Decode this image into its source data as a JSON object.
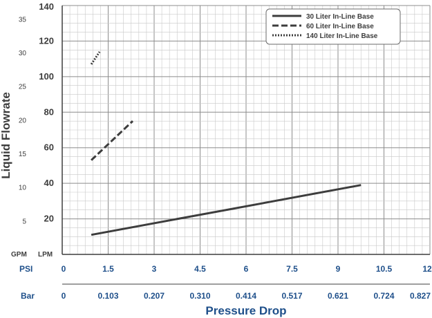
{
  "chart_data": {
    "type": "line",
    "ylabel": "Liquid Flowrate",
    "xlabel": "Pressure Drop",
    "x_unit_psi": "PSI",
    "x_unit_bar": "Bar",
    "y_unit_lpm": "LPM",
    "y_unit_gpm": "GPM",
    "xlim": [
      0,
      12
    ],
    "ylim": [
      0,
      140
    ],
    "psi_ticks": [
      {
        "value": 0,
        "label": "0"
      },
      {
        "value": 1.5,
        "label": "1.5"
      },
      {
        "value": 3,
        "label": "3"
      },
      {
        "value": 4.5,
        "label": "4.5"
      },
      {
        "value": 6,
        "label": "6"
      },
      {
        "value": 7.5,
        "label": "7.5"
      },
      {
        "value": 9,
        "label": "9"
      },
      {
        "value": 10.5,
        "label": "10.5"
      },
      {
        "value": 12,
        "label": "12"
      }
    ],
    "bar_ticks": [
      {
        "value": 0,
        "label": "0"
      },
      {
        "value": 1.5,
        "label": "0.103"
      },
      {
        "value": 3,
        "label": "0.207"
      },
      {
        "value": 4.5,
        "label": "0.310"
      },
      {
        "value": 6,
        "label": "0.414"
      },
      {
        "value": 7.5,
        "label": "0.517"
      },
      {
        "value": 9,
        "label": "0.621"
      },
      {
        "value": 10.5,
        "label": "0.724"
      },
      {
        "value": 12,
        "label": "0.827"
      }
    ],
    "lpm_ticks": [
      {
        "value": 20,
        "label": "20"
      },
      {
        "value": 40,
        "label": "40"
      },
      {
        "value": 60,
        "label": "60"
      },
      {
        "value": 80,
        "label": "80"
      },
      {
        "value": 100,
        "label": "100"
      },
      {
        "value": 120,
        "label": "120"
      },
      {
        "value": 140,
        "label": "140"
      }
    ],
    "gpm_ticks": [
      {
        "value": 5,
        "label": "5"
      },
      {
        "value": 10,
        "label": "10"
      },
      {
        "value": 15,
        "label": "15"
      },
      {
        "value": 20,
        "label": "20"
      },
      {
        "value": 25,
        "label": "25"
      },
      {
        "value": 30,
        "label": "30"
      },
      {
        "value": 35,
        "label": "35"
      }
    ],
    "gpm_to_lpm": 3.785,
    "grid": true,
    "legend_position": "top-right",
    "series": [
      {
        "name": "30 Liter In-Line Base",
        "style": "solid",
        "x": [
          0.95,
          9.75
        ],
        "y": [
          11,
          39
        ]
      },
      {
        "name": "60 Liter In-Line Base",
        "style": "dashed",
        "x": [
          0.95,
          2.3
        ],
        "y": [
          53,
          75
        ]
      },
      {
        "name": "140 Liter In-Line Base",
        "style": "dotted",
        "x": [
          0.95,
          1.22
        ],
        "y": [
          107,
          114
        ]
      }
    ],
    "colors": {
      "line": "#3d3d3d",
      "grid_minor": "#c8c8c8",
      "grid_major": "#8c8c8c",
      "blue": "#1e4f8a"
    }
  }
}
